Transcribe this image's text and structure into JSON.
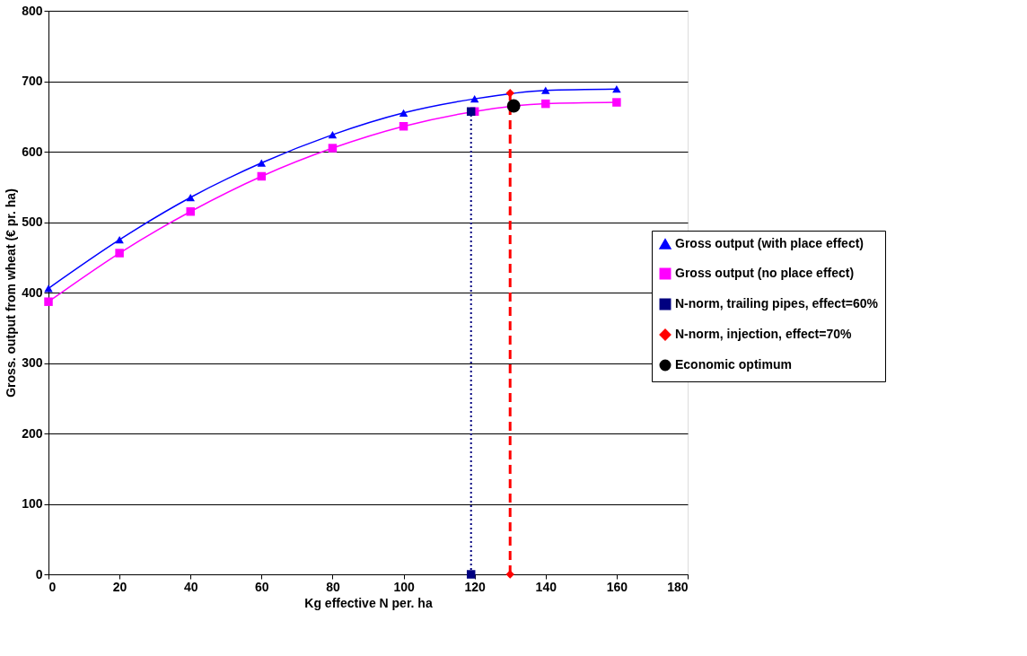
{
  "chart_data": {
    "type": "line",
    "xlabel": "Kg effective N per. ha",
    "ylabel": "Gross. output from wheat (€ pr. ha)",
    "xlim": [
      0,
      180
    ],
    "xticks": [
      0,
      20,
      40,
      60,
      80,
      100,
      120,
      140,
      160,
      180
    ],
    "ylim": [
      0,
      800
    ],
    "yticks": [
      0,
      100,
      200,
      300,
      400,
      500,
      600,
      700,
      800
    ],
    "grid": "y",
    "legend": "right",
    "series": [
      {
        "name": "Gross output (with place effect)",
        "color": "#0000ff",
        "marker": "triangle",
        "line_style": "solid",
        "x": [
          0,
          20,
          40,
          60,
          80,
          100,
          120,
          140,
          160
        ],
        "values": [
          406,
          475,
          535,
          584,
          624,
          655,
          675,
          687,
          689
        ]
      },
      {
        "name": "Gross output (no place effect)",
        "color": "#ff00ff",
        "marker": "square",
        "line_style": "solid",
        "x": [
          0,
          20,
          40,
          60,
          80,
          100,
          120,
          140,
          160
        ],
        "values": [
          387,
          456,
          515,
          565,
          605,
          636,
          657,
          668,
          670
        ]
      },
      {
        "name": "N-norm, trailing pipes, effect=60%",
        "color": "#000080",
        "marker": "square",
        "line_style": "dotted",
        "x": [
          119,
          119
        ],
        "values": [
          0,
          657
        ]
      },
      {
        "name": "N-norm, injection, effect=70%",
        "color": "#ff0000",
        "marker": "diamond",
        "line_style": "dashed",
        "x": [
          130,
          130
        ],
        "values": [
          0,
          683
        ]
      },
      {
        "name": "Economic optimum",
        "type": "scatter",
        "color": "#000000",
        "marker": "circle",
        "x": [
          131
        ],
        "values": [
          665
        ]
      }
    ]
  }
}
